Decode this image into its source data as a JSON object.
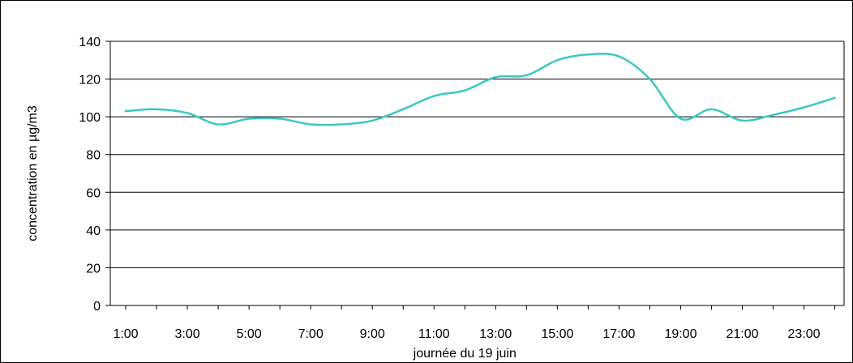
{
  "chart_data": {
    "type": "line",
    "xlabel": "journée du 19 juin",
    "ylabel": "concentration en µg/m3",
    "ylim": [
      0,
      140
    ],
    "yticks": [
      0,
      20,
      40,
      60,
      80,
      100,
      120,
      140
    ],
    "xlim": [
      0.5,
      24.3
    ],
    "xtick_labels": [
      "1:00",
      "3:00",
      "5:00",
      "7:00",
      "9:00",
      "11:00",
      "13:00",
      "15:00",
      "17:00",
      "19:00",
      "21:00",
      "23:00"
    ],
    "grid": "horizontal",
    "series": [
      {
        "color": "#3cc8c0",
        "x": [
          1,
          2,
          3,
          4,
          5,
          6,
          7,
          8,
          9,
          10,
          11,
          12,
          13,
          14,
          15,
          16,
          17,
          18,
          19,
          20,
          21,
          22,
          23,
          24
        ],
        "y": [
          103,
          104,
          102,
          96,
          99,
          99,
          96,
          96,
          98,
          104,
          111,
          114,
          121,
          122,
          130,
          133,
          132,
          120,
          99,
          104,
          98,
          101,
          105,
          110
        ]
      }
    ]
  }
}
